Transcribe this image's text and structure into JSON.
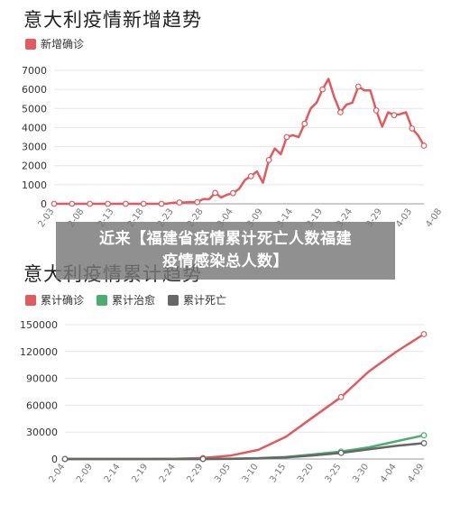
{
  "chart_data": [
    {
      "type": "line",
      "title": "意大利疫情新增趋势",
      "x": [
        "2-03",
        "2-08",
        "2-13",
        "2-18",
        "2-23",
        "2-28",
        "3-04",
        "3-09",
        "3-14",
        "3-19",
        "3-24",
        "3-29",
        "4-03",
        "4-08"
      ],
      "ylim": [
        0,
        7000
      ],
      "yticks": [
        0,
        1000,
        2000,
        3000,
        4000,
        5000,
        6000,
        7000
      ],
      "series": [
        {
          "name": "新增确诊",
          "color": "#e05a60",
          "points": [
            [
              0,
              0
            ],
            [
              1,
              0
            ],
            [
              2,
              0
            ],
            [
              3,
              0
            ],
            [
              4,
              0
            ],
            [
              5,
              0
            ],
            [
              6,
              0
            ],
            [
              7,
              0
            ],
            [
              8,
              0
            ],
            [
              9,
              0
            ],
            [
              10,
              0
            ],
            [
              11,
              0
            ],
            [
              12,
              0
            ],
            [
              13,
              0
            ],
            [
              14,
              0
            ],
            [
              15,
              0
            ],
            [
              16,
              0
            ],
            [
              17,
              0
            ],
            [
              18,
              0
            ],
            [
              19,
              16
            ],
            [
              20,
              62
            ],
            [
              21,
              70
            ],
            [
              22,
              76
            ],
            [
              23,
              96
            ],
            [
              24,
              85
            ],
            [
              25,
              250
            ],
            [
              26,
              240
            ],
            [
              27,
              570
            ],
            [
              28,
              330
            ],
            [
              29,
              480
            ],
            [
              30,
              560
            ],
            [
              31,
              780
            ],
            [
              32,
              1250
            ],
            [
              33,
              1450
            ],
            [
              34,
              1700
            ],
            [
              35,
              1100
            ],
            [
              36,
              2300
            ],
            [
              37,
              2900
            ],
            [
              38,
              2600
            ],
            [
              39,
              3500
            ],
            [
              40,
              3600
            ],
            [
              41,
              3500
            ],
            [
              42,
              4200
            ],
            [
              43,
              5000
            ],
            [
              44,
              5300
            ],
            [
              45,
              6000
            ],
            [
              46,
              6550
            ],
            [
              47,
              5560
            ],
            [
              48,
              4800
            ],
            [
              49,
              5200
            ],
            [
              50,
              5300
            ],
            [
              51,
              6150
            ],
            [
              52,
              5950
            ],
            [
              53,
              5950
            ],
            [
              54,
              4900
            ],
            [
              55,
              4050
            ],
            [
              56,
              4800
            ],
            [
              57,
              4650
            ],
            [
              58,
              4700
            ],
            [
              59,
              4800
            ],
            [
              60,
              3950
            ],
            [
              61,
              3600
            ],
            [
              62,
              3050
            ]
          ]
        }
      ]
    },
    {
      "type": "line",
      "title": "意大利疫情累计趋势",
      "x": [
        "2-04",
        "2-09",
        "2-14",
        "2-19",
        "2-24",
        "2-29",
        "3-05",
        "3-10",
        "3-15",
        "3-20",
        "3-25",
        "3-30",
        "4-04",
        "4-09"
      ],
      "ylim": [
        0,
        150000
      ],
      "yticks": [
        0,
        30000,
        60000,
        90000,
        120000,
        150000
      ],
      "series": [
        {
          "name": "累计确诊",
          "color": "#e05a60",
          "points": [
            [
              0,
              2
            ],
            [
              5,
              3
            ],
            [
              10,
              3
            ],
            [
              15,
              3
            ],
            [
              20,
              229
            ],
            [
              25,
              1128
            ],
            [
              30,
              3858
            ],
            [
              35,
              10149
            ],
            [
              40,
              24747
            ],
            [
              45,
              47021
            ],
            [
              50,
              69176
            ],
            [
              55,
              97689
            ],
            [
              60,
              119827
            ],
            [
              65,
              139422
            ]
          ]
        },
        {
          "name": "累计治愈",
          "color": "#4cae6e",
          "points": [
            [
              0,
              0
            ],
            [
              5,
              0
            ],
            [
              10,
              0
            ],
            [
              15,
              0
            ],
            [
              20,
              1
            ],
            [
              25,
              46
            ],
            [
              30,
              414
            ],
            [
              35,
              1004
            ],
            [
              40,
              2335
            ],
            [
              45,
              5129
            ],
            [
              50,
              8326
            ],
            [
              55,
              13030
            ],
            [
              60,
              19758
            ],
            [
              65,
              26491
            ]
          ]
        },
        {
          "name": "累计死亡",
          "color": "#666666",
          "points": [
            [
              0,
              0
            ],
            [
              5,
              0
            ],
            [
              10,
              0
            ],
            [
              15,
              0
            ],
            [
              20,
              7
            ],
            [
              25,
              29
            ],
            [
              30,
              148
            ],
            [
              35,
              631
            ],
            [
              40,
              1809
            ],
            [
              45,
              4032
            ],
            [
              50,
              6820
            ],
            [
              55,
              10779
            ],
            [
              60,
              14681
            ],
            [
              65,
              17669
            ]
          ]
        }
      ]
    }
  ],
  "overlay": {
    "line1": "近来【福建省疫情累计死亡人数福建",
    "line2": "疫情感染总人数】"
  }
}
